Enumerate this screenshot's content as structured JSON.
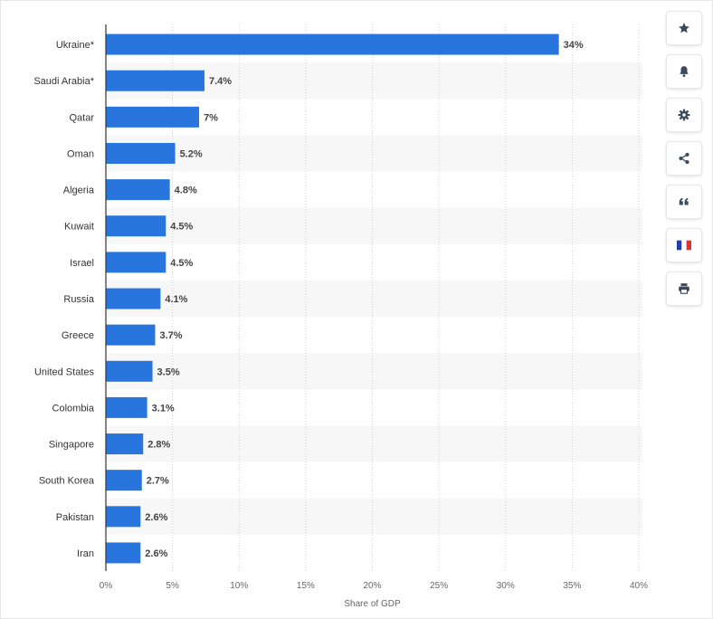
{
  "chart_data": {
    "type": "bar",
    "orientation": "horizontal",
    "categories": [
      "Ukraine*",
      "Saudi Arabia*",
      "Qatar",
      "Oman",
      "Algeria",
      "Kuwait",
      "Israel",
      "Russia",
      "Greece",
      "United States",
      "Colombia",
      "Singapore",
      "South Korea",
      "Pakistan",
      "Iran"
    ],
    "values": [
      34,
      7.4,
      7,
      5.2,
      4.8,
      4.5,
      4.5,
      4.1,
      3.7,
      3.5,
      3.1,
      2.8,
      2.7,
      2.6,
      2.6
    ],
    "value_labels": [
      "34%",
      "7.4%",
      "7%",
      "5.2%",
      "4.8%",
      "4.5%",
      "4.5%",
      "4.1%",
      "3.7%",
      "3.5%",
      "3.1%",
      "2.8%",
      "2.7%",
      "2.6%",
      "2.6%"
    ],
    "xlabel": "Share of GDP",
    "ylabel": "",
    "xlim": [
      0,
      40
    ],
    "x_ticks": [
      0,
      5,
      10,
      15,
      20,
      25,
      30,
      35,
      40
    ],
    "x_tick_labels": [
      "0%",
      "5%",
      "10%",
      "15%",
      "20%",
      "25%",
      "30%",
      "35%",
      "40%"
    ],
    "grid": "vertical dotted",
    "legend": "none"
  },
  "colors": {
    "bar": "#2876dd",
    "band": "#f7f7f7",
    "grid": "#d0d0d0",
    "axis": "#333333",
    "label_text": "#333333",
    "value_text": "#444444",
    "tick_text": "#666666",
    "icon": "#3a4a5c"
  },
  "toolbar": {
    "items": [
      {
        "name": "star-icon"
      },
      {
        "name": "bell-icon"
      },
      {
        "name": "gear-icon"
      },
      {
        "name": "share-icon"
      },
      {
        "name": "quote-icon"
      },
      {
        "name": "french-flag-icon"
      },
      {
        "name": "print-icon"
      }
    ]
  }
}
